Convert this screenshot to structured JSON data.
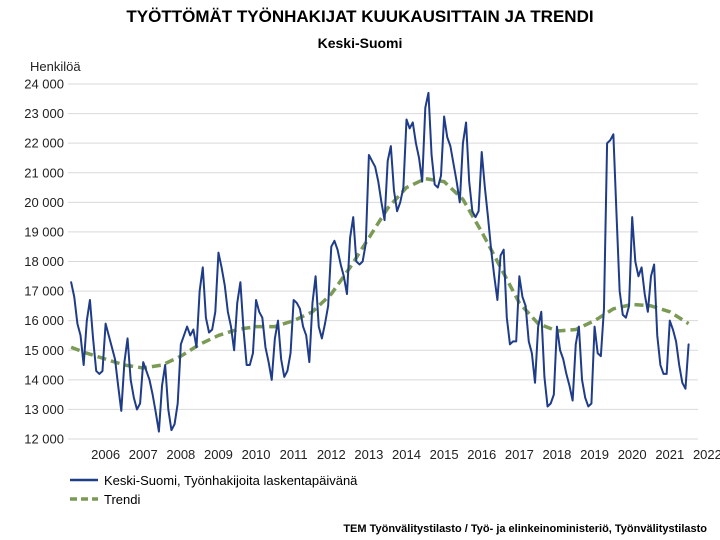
{
  "chart_data": {
    "type": "line",
    "title": "TYÖTTÖMÄT TYÖNHAKIJAT KUUKAUSITTAIN JA TRENDI",
    "subtitle": "Keski-Suomi",
    "ylabel": "Henkilöä",
    "xlabel": "",
    "ylim": [
      12000,
      24000
    ],
    "y_ticks": [
      12000,
      13000,
      14000,
      15000,
      16000,
      17000,
      18000,
      19000,
      20000,
      21000,
      22000,
      23000,
      24000
    ],
    "y_tick_labels": [
      "12 000",
      "13 000",
      "14 000",
      "15 000",
      "16 000",
      "17 000",
      "18 000",
      "19 000",
      "20 000",
      "21 000",
      "22 000",
      "23 000",
      "24 000"
    ],
    "x_tick_labels": [
      "2006",
      "2007",
      "2008",
      "2009",
      "2010",
      "2011",
      "2012",
      "2013",
      "2014",
      "2015",
      "2016",
      "2017",
      "2018",
      "2019",
      "2020",
      "2021",
      "2022"
    ],
    "grid": true,
    "legend_placement": "bottom",
    "series": [
      {
        "name": "Keski-Suomi, Työnhakijoita laskentapäivänä",
        "color": "#1f3c88",
        "style": "solid",
        "points": [
          [
            "2005-08",
            17300
          ],
          [
            "2005-09",
            16800
          ],
          [
            "2005-10",
            15900
          ],
          [
            "2005-11",
            15500
          ],
          [
            "2005-12",
            14500
          ],
          [
            "2006-01",
            16000
          ],
          [
            "2006-02",
            16700
          ],
          [
            "2006-03",
            15400
          ],
          [
            "2006-04",
            14300
          ],
          [
            "2006-05",
            14200
          ],
          [
            "2006-06",
            14300
          ],
          [
            "2006-07",
            15900
          ],
          [
            "2006-08",
            15500
          ],
          [
            "2006-09",
            15100
          ],
          [
            "2006-10",
            14700
          ],
          [
            "2006-11",
            13800
          ],
          [
            "2006-12",
            12950
          ],
          [
            "2007-01",
            14600
          ],
          [
            "2007-02",
            15400
          ],
          [
            "2007-03",
            14000
          ],
          [
            "2007-04",
            13400
          ],
          [
            "2007-05",
            13000
          ],
          [
            "2007-06",
            13200
          ],
          [
            "2007-07",
            14600
          ],
          [
            "2007-08",
            14300
          ],
          [
            "2007-09",
            14000
          ],
          [
            "2007-10",
            13500
          ],
          [
            "2007-11",
            12900
          ],
          [
            "2007-12",
            12250
          ],
          [
            "2008-01",
            13800
          ],
          [
            "2008-02",
            14500
          ],
          [
            "2008-03",
            13000
          ],
          [
            "2008-04",
            12300
          ],
          [
            "2008-05",
            12500
          ],
          [
            "2008-06",
            13200
          ],
          [
            "2008-07",
            15200
          ],
          [
            "2008-08",
            15500
          ],
          [
            "2008-09",
            15800
          ],
          [
            "2008-10",
            15500
          ],
          [
            "2008-11",
            15700
          ],
          [
            "2008-12",
            15100
          ],
          [
            "2009-01",
            17000
          ],
          [
            "2009-02",
            17800
          ],
          [
            "2009-03",
            16100
          ],
          [
            "2009-04",
            15600
          ],
          [
            "2009-05",
            15700
          ],
          [
            "2009-06",
            16300
          ],
          [
            "2009-07",
            18300
          ],
          [
            "2009-08",
            17800
          ],
          [
            "2009-09",
            17200
          ],
          [
            "2009-10",
            16300
          ],
          [
            "2009-11",
            15800
          ],
          [
            "2009-12",
            15000
          ],
          [
            "2010-01",
            16600
          ],
          [
            "2010-02",
            17300
          ],
          [
            "2010-03",
            15700
          ],
          [
            "2010-04",
            14500
          ],
          [
            "2010-05",
            14500
          ],
          [
            "2010-06",
            14900
          ],
          [
            "2010-07",
            16700
          ],
          [
            "2010-08",
            16300
          ],
          [
            "2010-09",
            16100
          ],
          [
            "2010-10",
            15100
          ],
          [
            "2010-11",
            14600
          ],
          [
            "2010-12",
            14000
          ],
          [
            "2011-01",
            15400
          ],
          [
            "2011-02",
            16000
          ],
          [
            "2011-03",
            14700
          ],
          [
            "2011-04",
            14100
          ],
          [
            "2011-05",
            14300
          ],
          [
            "2011-06",
            14900
          ],
          [
            "2011-07",
            16700
          ],
          [
            "2011-08",
            16600
          ],
          [
            "2011-09",
            16400
          ],
          [
            "2011-10",
            15800
          ],
          [
            "2011-11",
            15500
          ],
          [
            "2011-12",
            14600
          ],
          [
            "2012-01",
            16600
          ],
          [
            "2012-02",
            17500
          ],
          [
            "2012-03",
            15800
          ],
          [
            "2012-04",
            15400
          ],
          [
            "2012-05",
            15900
          ],
          [
            "2012-06",
            16500
          ],
          [
            "2012-07",
            18500
          ],
          [
            "2012-08",
            18700
          ],
          [
            "2012-09",
            18400
          ],
          [
            "2012-10",
            17900
          ],
          [
            "2012-11",
            17500
          ],
          [
            "2012-12",
            16900
          ],
          [
            "2013-01",
            18800
          ],
          [
            "2013-02",
            19500
          ],
          [
            "2013-03",
            18000
          ],
          [
            "2013-04",
            17900
          ],
          [
            "2013-05",
            18000
          ],
          [
            "2013-06",
            18600
          ],
          [
            "2013-07",
            21600
          ],
          [
            "2013-08",
            21400
          ],
          [
            "2013-09",
            21200
          ],
          [
            "2013-10",
            20700
          ],
          [
            "2013-11",
            20000
          ],
          [
            "2013-12",
            19400
          ],
          [
            "2014-01",
            21400
          ],
          [
            "2014-02",
            21900
          ],
          [
            "2014-03",
            20400
          ],
          [
            "2014-04",
            19700
          ],
          [
            "2014-05",
            20000
          ],
          [
            "2014-06",
            20500
          ],
          [
            "2014-07",
            22800
          ],
          [
            "2014-08",
            22500
          ],
          [
            "2014-09",
            22700
          ],
          [
            "2014-10",
            22000
          ],
          [
            "2014-11",
            21500
          ],
          [
            "2014-12",
            20700
          ],
          [
            "2015-01",
            23200
          ],
          [
            "2015-02",
            23700
          ],
          [
            "2015-03",
            21600
          ],
          [
            "2015-04",
            20600
          ],
          [
            "2015-05",
            20500
          ],
          [
            "2015-06",
            20900
          ],
          [
            "2015-07",
            22900
          ],
          [
            "2015-08",
            22200
          ],
          [
            "2015-09",
            21900
          ],
          [
            "2015-10",
            21300
          ],
          [
            "2015-11",
            20700
          ],
          [
            "2015-12",
            20000
          ],
          [
            "2016-01",
            22000
          ],
          [
            "2016-02",
            22700
          ],
          [
            "2016-03",
            20700
          ],
          [
            "2016-04",
            19700
          ],
          [
            "2016-05",
            19500
          ],
          [
            "2016-06",
            19700
          ],
          [
            "2016-07",
            21700
          ],
          [
            "2016-08",
            20500
          ],
          [
            "2016-09",
            19500
          ],
          [
            "2016-10",
            18400
          ],
          [
            "2016-11",
            17500
          ],
          [
            "2016-12",
            16700
          ],
          [
            "2017-01",
            18200
          ],
          [
            "2017-02",
            18400
          ],
          [
            "2017-03",
            16100
          ],
          [
            "2017-04",
            15200
          ],
          [
            "2017-05",
            15300
          ],
          [
            "2017-06",
            15300
          ],
          [
            "2017-07",
            17500
          ],
          [
            "2017-08",
            16800
          ],
          [
            "2017-09",
            16500
          ],
          [
            "2017-10",
            15300
          ],
          [
            "2017-11",
            14900
          ],
          [
            "2017-12",
            13900
          ],
          [
            "2018-01",
            15800
          ],
          [
            "2018-02",
            16300
          ],
          [
            "2018-03",
            14100
          ],
          [
            "2018-04",
            13100
          ],
          [
            "2018-05",
            13200
          ],
          [
            "2018-06",
            13500
          ],
          [
            "2018-07",
            15800
          ],
          [
            "2018-08",
            15000
          ],
          [
            "2018-09",
            14700
          ],
          [
            "2018-10",
            14200
          ],
          [
            "2018-11",
            13800
          ],
          [
            "2018-12",
            13300
          ],
          [
            "2019-01",
            15200
          ],
          [
            "2019-02",
            15800
          ],
          [
            "2019-03",
            14000
          ],
          [
            "2019-04",
            13400
          ],
          [
            "2019-05",
            13100
          ],
          [
            "2019-06",
            13200
          ],
          [
            "2019-07",
            15800
          ],
          [
            "2019-08",
            14900
          ],
          [
            "2019-09",
            14800
          ],
          [
            "2019-10",
            16400
          ],
          [
            "2019-11",
            22000
          ],
          [
            "2019-12",
            22100
          ],
          [
            "2020-01",
            22300
          ],
          [
            "2020-02",
            19600
          ],
          [
            "2020-03",
            17000
          ],
          [
            "2020-04",
            16200
          ],
          [
            "2020-05",
            16100
          ],
          [
            "2020-06",
            16500
          ],
          [
            "2020-07",
            19500
          ],
          [
            "2020-08",
            18000
          ],
          [
            "2020-09",
            17500
          ],
          [
            "2020-10",
            17800
          ],
          [
            "2020-11",
            16900
          ],
          [
            "2020-12",
            16300
          ],
          [
            "2021-01",
            17500
          ],
          [
            "2021-02",
            17900
          ],
          [
            "2021-03",
            15500
          ],
          [
            "2021-04",
            14500
          ],
          [
            "2021-05",
            14200
          ],
          [
            "2021-06",
            14200
          ],
          [
            "2021-07",
            16000
          ],
          [
            "2021-08",
            15700
          ],
          [
            "2021-09",
            15300
          ],
          [
            "2021-10",
            14500
          ],
          [
            "2021-11",
            13900
          ],
          [
            "2021-12",
            13700
          ],
          [
            "2022-01",
            15200
          ]
        ]
      },
      {
        "name": "Trendi",
        "color": "#7a9a55",
        "style": "dashed",
        "points": [
          [
            "2005-08",
            15100
          ],
          [
            "2006-01",
            14900
          ],
          [
            "2006-07",
            14700
          ],
          [
            "2007-01",
            14500
          ],
          [
            "2007-07",
            14400
          ],
          [
            "2008-01",
            14500
          ],
          [
            "2008-07",
            14800
          ],
          [
            "2009-01",
            15200
          ],
          [
            "2009-07",
            15500
          ],
          [
            "2010-01",
            15700
          ],
          [
            "2010-07",
            15800
          ],
          [
            "2011-01",
            15800
          ],
          [
            "2011-07",
            16000
          ],
          [
            "2012-01",
            16300
          ],
          [
            "2012-07",
            16900
          ],
          [
            "2013-01",
            17800
          ],
          [
            "2013-07",
            18800
          ],
          [
            "2014-01",
            19800
          ],
          [
            "2014-07",
            20500
          ],
          [
            "2015-01",
            20800
          ],
          [
            "2015-07",
            20700
          ],
          [
            "2016-01",
            20100
          ],
          [
            "2016-07",
            19000
          ],
          [
            "2017-01",
            17800
          ],
          [
            "2017-07",
            16600
          ],
          [
            "2018-01",
            15900
          ],
          [
            "2018-07",
            15650
          ],
          [
            "2019-01",
            15700
          ],
          [
            "2019-07",
            16000
          ],
          [
            "2020-01",
            16400
          ],
          [
            "2020-07",
            16550
          ],
          [
            "2021-01",
            16500
          ],
          [
            "2021-07",
            16300
          ],
          [
            "2022-01",
            15900
          ]
        ]
      }
    ]
  },
  "footer": {
    "source": "TEM Työnvälitystilasto / Työ- ja elinkeinoministeriö, Työnvälitystilasto"
  }
}
